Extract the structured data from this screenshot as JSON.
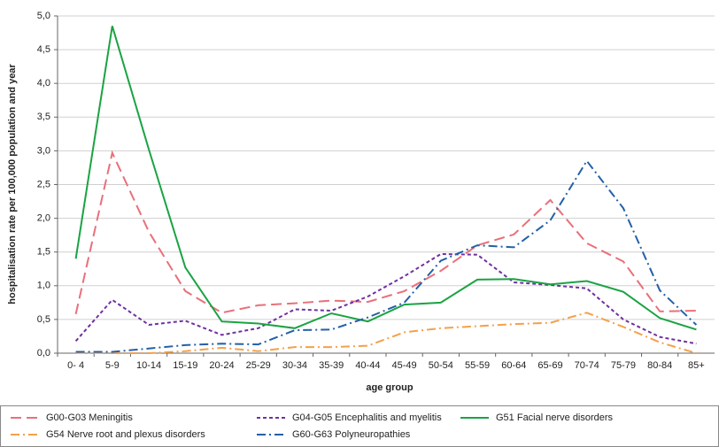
{
  "chart_data": {
    "type": "line",
    "y_label": "hospitalisation rate per 100,000 population and year",
    "x_label": "age group",
    "categories": [
      "0- 4",
      "5-9",
      "10-14",
      "15-19",
      "20-24",
      "25-29",
      "30-34",
      "35-39",
      "40-44",
      "45-49",
      "50-54",
      "55-59",
      "60-64",
      "65-69",
      "70-74",
      "75-79",
      "80-84",
      "85+"
    ],
    "ylim": [
      0,
      5
    ],
    "yticks": [
      {
        "value": 0,
        "label": "0,0"
      },
      {
        "value": 0.5,
        "label": "0,5"
      },
      {
        "value": 1,
        "label": "1,0"
      },
      {
        "value": 1.5,
        "label": "1,5"
      },
      {
        "value": 2,
        "label": "2,0"
      },
      {
        "value": 2.5,
        "label": "2,5"
      },
      {
        "value": 3,
        "label": "3,0"
      },
      {
        "value": 3.5,
        "label": "3,5"
      },
      {
        "value": 4,
        "label": "4,0"
      },
      {
        "value": 4.5,
        "label": "4,5"
      },
      {
        "value": 5,
        "label": "5,0"
      }
    ],
    "grid": true,
    "series": [
      {
        "name": "G00-G03 Meningitis",
        "color": "#e8707a",
        "dash": "12,6",
        "values": [
          0.58,
          2.97,
          1.8,
          0.92,
          0.6,
          0.71,
          0.74,
          0.78,
          0.76,
          0.92,
          1.22,
          1.6,
          1.76,
          2.27,
          1.63,
          1.36,
          0.62,
          0.63
        ]
      },
      {
        "name": "G04-G05 Encephalitis and myelitis",
        "color": "#7030a0",
        "dash": "4,3",
        "values": [
          0.18,
          0.79,
          0.42,
          0.48,
          0.27,
          0.37,
          0.65,
          0.63,
          0.84,
          1.14,
          1.47,
          1.46,
          1.05,
          1.01,
          0.96,
          0.5,
          0.24,
          0.14
        ]
      },
      {
        "name": "G51 Facial nerve disorders",
        "color": "#1aa343",
        "dash": "none",
        "values": [
          1.4,
          4.85,
          3.02,
          1.27,
          0.47,
          0.44,
          0.37,
          0.59,
          0.47,
          0.72,
          0.75,
          1.09,
          1.1,
          1.02,
          1.07,
          0.91,
          0.52,
          0.35
        ]
      },
      {
        "name": "G54 Nerve root and plexus disorders",
        "color": "#f5a04a",
        "dash": "10,4,2,4",
        "values": [
          0.01,
          0.0,
          0.0,
          0.03,
          0.08,
          0.03,
          0.09,
          0.09,
          0.11,
          0.31,
          0.37,
          0.4,
          0.43,
          0.45,
          0.6,
          0.39,
          0.16,
          0.0
        ]
      },
      {
        "name": "G60-G63 Polyneuropathies",
        "color": "#2460a7",
        "dash": "10,4,2,4",
        "values": [
          0.02,
          0.02,
          0.07,
          0.12,
          0.14,
          0.13,
          0.34,
          0.35,
          0.53,
          0.75,
          1.37,
          1.6,
          1.57,
          1.97,
          2.85,
          2.15,
          0.93,
          0.42
        ]
      }
    ]
  }
}
